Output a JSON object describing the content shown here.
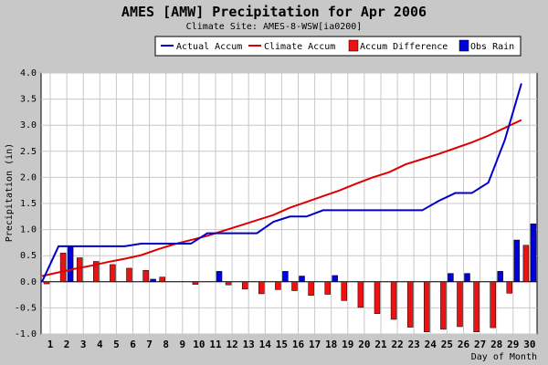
{
  "chart_data": {
    "type": "bar+line",
    "title": "AMES [AMW] Precipitation for Apr 2006",
    "subtitle": "Climate Site: AMES-8-WSW[ia0200]",
    "xlabel": "Day of Month",
    "ylabel": "Precipitation (in)",
    "ylim": [
      -1.0,
      4.0
    ],
    "yticks": [
      "-1.0",
      "-0.5",
      "0.0",
      "0.5",
      "1.0",
      "1.5",
      "2.0",
      "2.5",
      "3.0",
      "3.5",
      "4.0"
    ],
    "days": [
      1,
      2,
      3,
      4,
      5,
      6,
      7,
      8,
      9,
      10,
      11,
      12,
      13,
      14,
      15,
      16,
      17,
      18,
      19,
      20,
      21,
      22,
      23,
      24,
      25,
      26,
      27,
      28,
      29,
      30
    ],
    "legend_position": "top-right",
    "series": [
      {
        "name": "Actual Accum",
        "type": "line",
        "color": "#0000cc",
        "values": [
          0.0,
          0.68,
          0.68,
          0.68,
          0.68,
          0.68,
          0.73,
          0.73,
          0.73,
          0.73,
          0.93,
          0.93,
          0.93,
          0.93,
          1.15,
          1.25,
          1.25,
          1.37,
          1.37,
          1.37,
          1.37,
          1.37,
          1.37,
          1.37,
          1.55,
          1.7,
          1.7,
          1.9,
          2.72,
          3.8
        ]
      },
      {
        "name": "Climate Accum",
        "type": "line",
        "color": "#dd0000",
        "values": [
          0.11,
          0.18,
          0.25,
          0.31,
          0.38,
          0.44,
          0.51,
          0.62,
          0.72,
          0.8,
          0.88,
          0.98,
          1.08,
          1.18,
          1.28,
          1.42,
          1.53,
          1.64,
          1.75,
          1.88,
          2.0,
          2.1,
          2.25,
          2.35,
          2.45,
          2.56,
          2.67,
          2.8,
          2.95,
          3.1
        ]
      },
      {
        "name": "Accum Difference",
        "type": "bar",
        "color": "#ee1111",
        "values": [
          -0.04,
          0.55,
          0.46,
          0.39,
          0.33,
          0.26,
          0.22,
          0.09,
          0.0,
          -0.05,
          0.0,
          -0.06,
          -0.14,
          -0.23,
          -0.15,
          -0.17,
          -0.26,
          -0.24,
          -0.36,
          -0.49,
          -0.61,
          -0.72,
          -0.87,
          -0.96,
          -0.91,
          -0.86,
          -0.96,
          -0.88,
          -0.22,
          0.7
        ]
      },
      {
        "name": "Obs Rain",
        "type": "bar",
        "color": "#0000dd",
        "values": [
          0.0,
          0.68,
          0.0,
          0.0,
          0.0,
          0.0,
          0.05,
          0.0,
          0.0,
          0.0,
          0.2,
          0.0,
          0.0,
          0.0,
          0.2,
          0.11,
          0.0,
          0.12,
          0.0,
          0.0,
          0.0,
          0.0,
          0.0,
          0.0,
          0.16,
          0.16,
          0.0,
          0.2,
          0.8,
          1.11
        ]
      }
    ],
    "grid": true
  }
}
